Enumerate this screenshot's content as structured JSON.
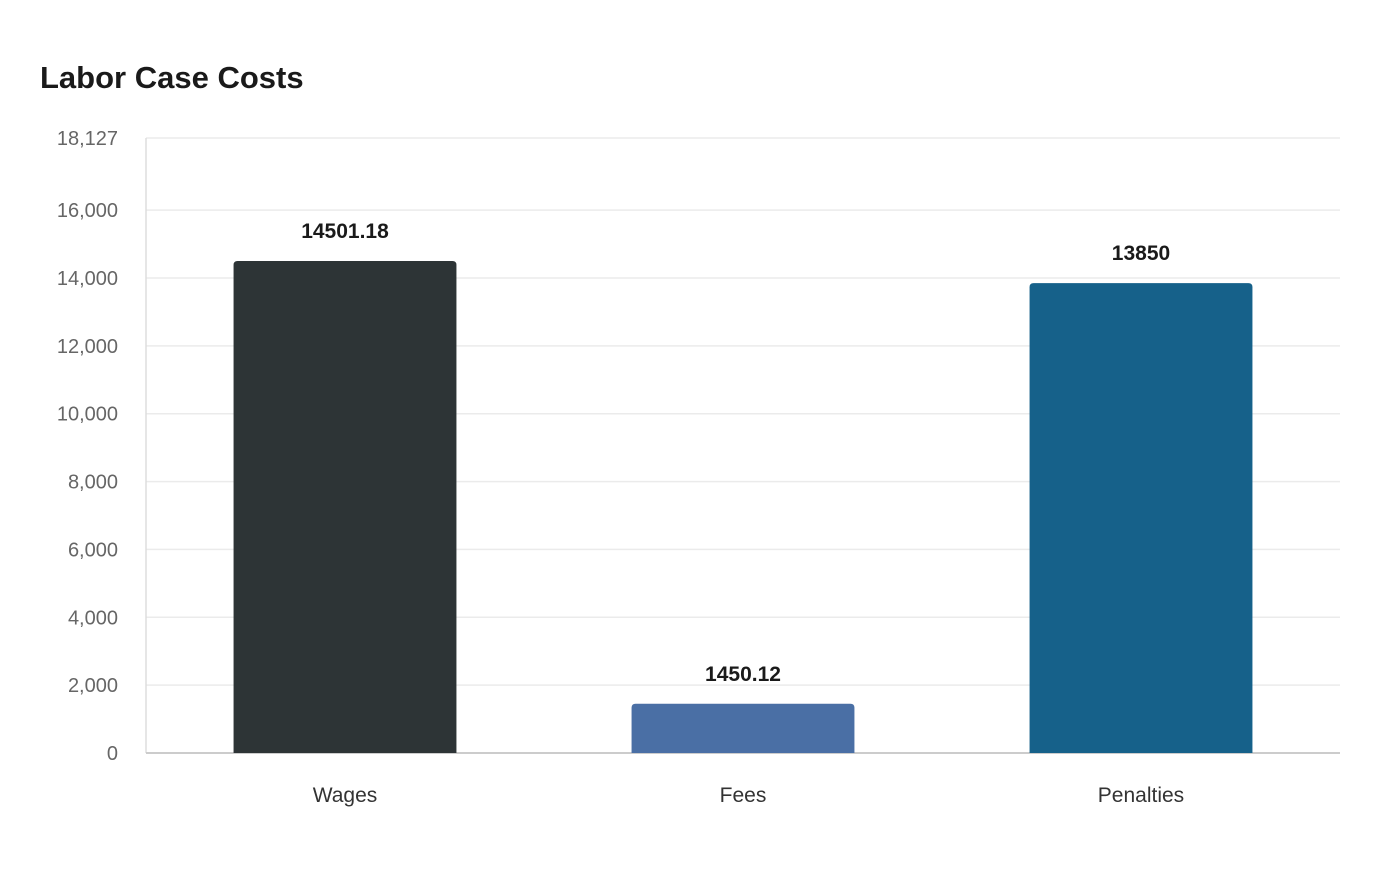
{
  "chart_data": {
    "type": "bar",
    "title": "Labor Case Costs",
    "xlabel": "",
    "ylabel": "",
    "categories": [
      "Wages",
      "Fees",
      "Penalties"
    ],
    "values": [
      14501.18,
      1450.12,
      13850
    ],
    "value_labels": [
      "14501.18",
      "1450.12",
      "13850"
    ],
    "bar_colors": [
      "#2d3436",
      "#4a6fa5",
      "#16618a"
    ],
    "ylim": [
      0,
      18127
    ],
    "yticks": [
      0,
      2000,
      4000,
      6000,
      8000,
      10000,
      12000,
      14000,
      16000,
      18127
    ],
    "ytick_labels": [
      "0",
      "2,000",
      "4,000",
      "6,000",
      "8,000",
      "10,000",
      "12,000",
      "14,000",
      "16,000",
      "18,127"
    ],
    "grid": true,
    "legend": "none"
  }
}
